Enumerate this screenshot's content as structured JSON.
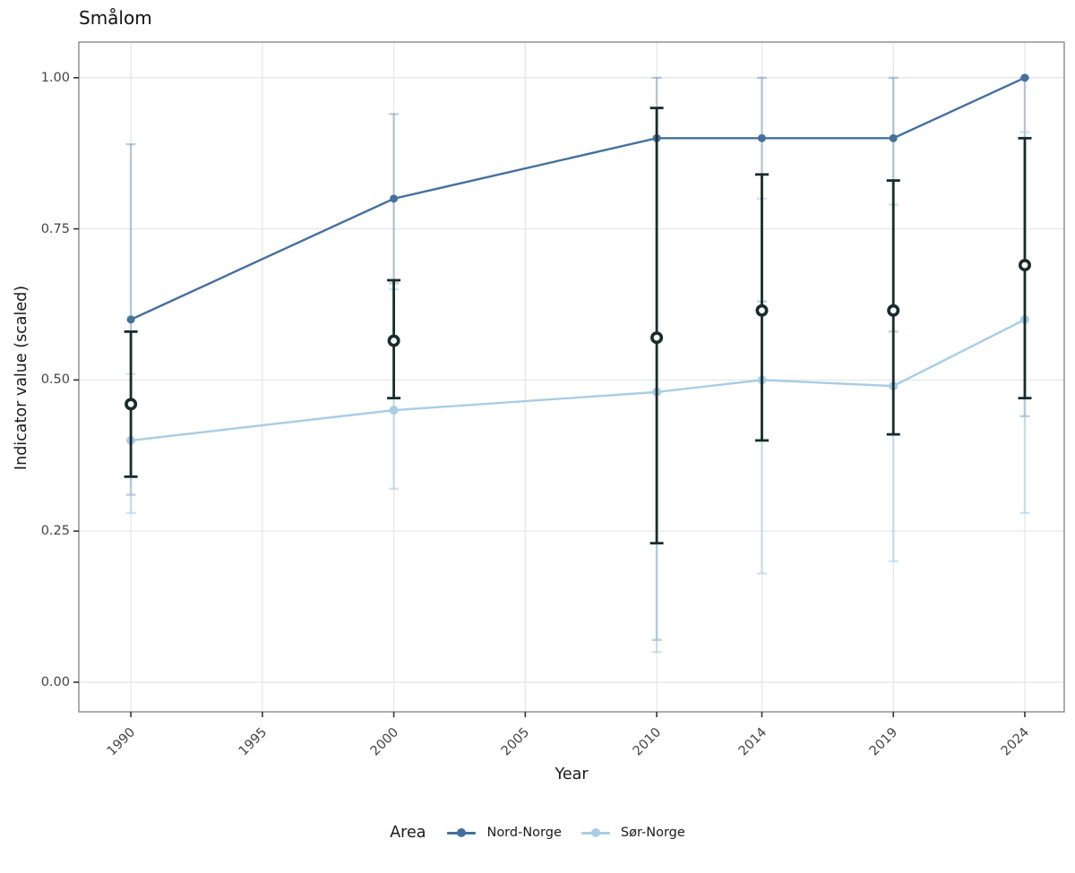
{
  "chart_data": {
    "type": "line",
    "title": "Smålom",
    "xlabel": "Year",
    "ylabel": "Indicator value (scaled)",
    "x_ticks": [
      "1990",
      "1995",
      "2000",
      "2005",
      "2010",
      "2014",
      "2019",
      "2024"
    ],
    "x_tick_years": [
      1990,
      1995,
      2000,
      2005,
      2010,
      2014,
      2019,
      2024
    ],
    "y_ticks": [
      "0.00",
      "0.25",
      "0.50",
      "0.75",
      "1.00"
    ],
    "y_tick_values": [
      0,
      0.25,
      0.5,
      0.75,
      1.0
    ],
    "xlim": [
      1988.02,
      2025.5
    ],
    "ylim": [
      -0.049,
      1.059
    ],
    "grid": "on",
    "legend_position": "bottom",
    "x": [
      1990,
      2000,
      2010,
      2014,
      2019,
      2024
    ],
    "series": [
      {
        "name": "Nord-Norge",
        "color": "#44709d",
        "ci_color": "rgba(68,112,157,0.33)",
        "values": [
          0.6,
          0.8,
          0.9,
          0.9,
          0.9,
          1.0
        ],
        "ci": [
          [
            0.31,
            0.89
          ],
          [
            0.66,
            0.94
          ],
          [
            0.07,
            1.0
          ],
          [
            0.63,
            1.0
          ],
          [
            0.58,
            1.0
          ],
          [
            0.44,
            1.0
          ]
        ]
      },
      {
        "name": "Sør-Norge",
        "color": "#a9cde5",
        "ci_color": "rgba(169,205,229,0.55)",
        "values": [
          0.4,
          0.45,
          0.48,
          0.5,
          0.49,
          0.6
        ],
        "ci": [
          [
            0.28,
            0.51
          ],
          [
            0.32,
            0.65
          ],
          [
            0.05,
            0.95
          ],
          [
            0.18,
            0.8
          ],
          [
            0.2,
            0.79
          ],
          [
            0.28,
            0.91
          ]
        ]
      }
    ],
    "overall": {
      "marker": "open-circle",
      "color": "#182b2d",
      "values": [
        0.46,
        0.565,
        0.57,
        0.615,
        0.615,
        0.69
      ],
      "ci": [
        [
          0.34,
          0.58
        ],
        [
          0.47,
          0.665
        ],
        [
          0.23,
          0.95
        ],
        [
          0.4,
          0.84
        ],
        [
          0.41,
          0.83
        ],
        [
          0.47,
          0.9
        ]
      ]
    }
  },
  "legend": {
    "title": "Area",
    "items": [
      {
        "label": "Nord-Norge"
      },
      {
        "label": "Sør-Norge"
      }
    ]
  },
  "colors": {
    "grid": "#e7e7e7",
    "panel_border": "#8a8a8a",
    "tick_mark": "#333333",
    "tick_label": "#444444"
  }
}
